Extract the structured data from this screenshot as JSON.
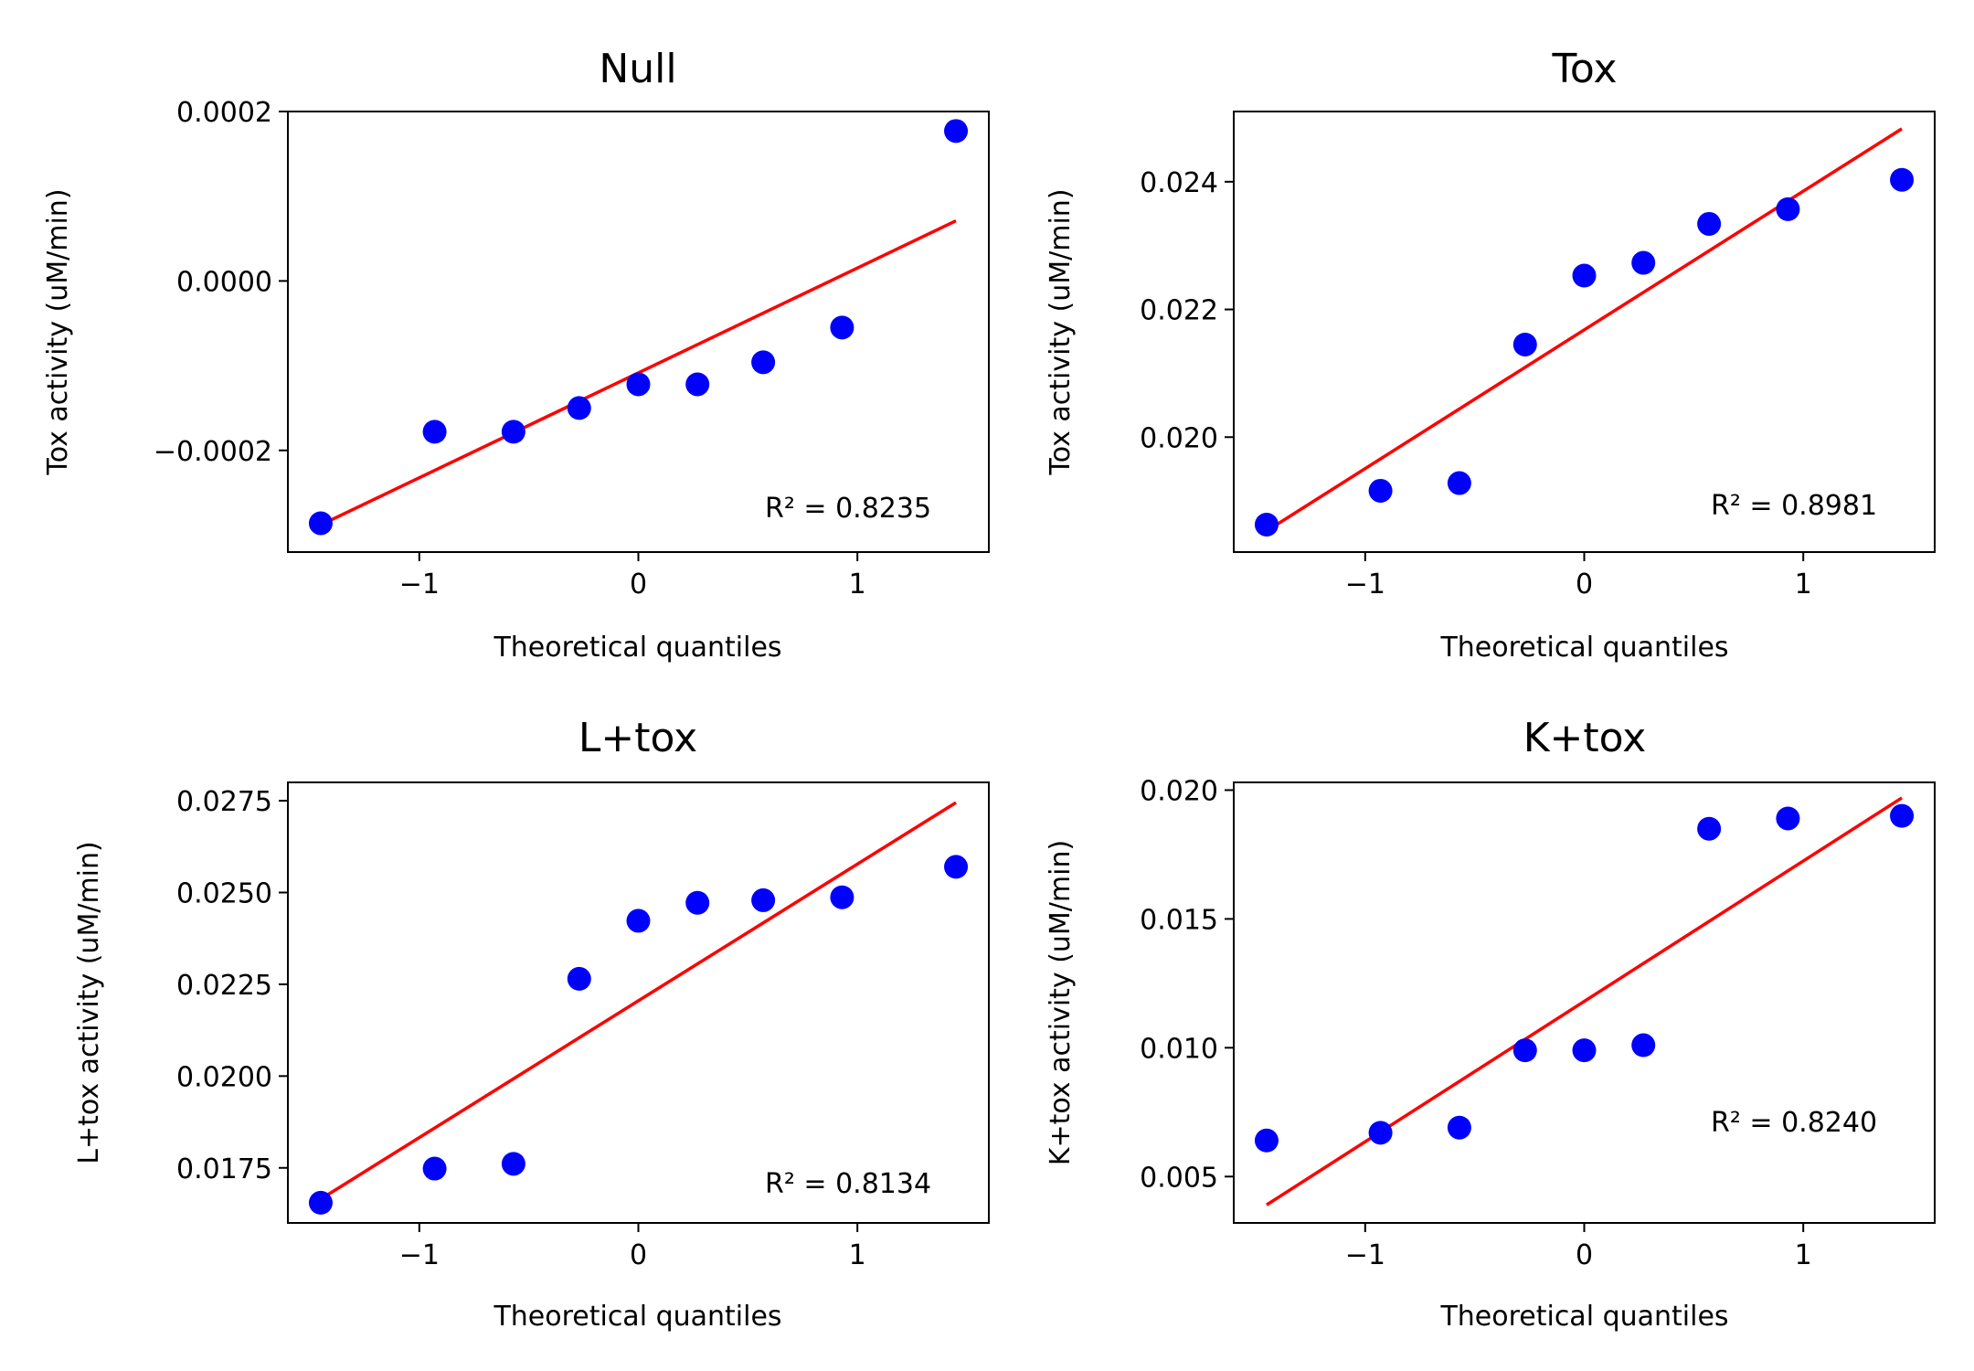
{
  "chart_data": [
    {
      "type": "scatter",
      "title": "Null",
      "xlabel": "Theoretical quantiles",
      "ylabel": "Tox activity (uM/min)",
      "xlim": [
        -1.6,
        1.6
      ],
      "ylim": [
        -0.00032,
        0.0002
      ],
      "xticks": [
        -1,
        0,
        1
      ],
      "xtick_labels": [
        "−1",
        "0",
        "1"
      ],
      "yticks": [
        -0.0002,
        0.0,
        0.0002
      ],
      "ytick_labels": [
        "−0.0002",
        "0.0000",
        "0.0002"
      ],
      "points": {
        "x": [
          -1.45,
          -0.93,
          -0.57,
          -0.27,
          0.0,
          0.27,
          0.57,
          0.93,
          1.45
        ],
        "y": [
          -0.000286,
          -0.000178,
          -0.000178,
          -0.00015,
          -0.000122,
          -0.000122,
          -9.6e-05,
          -5.5e-05,
          0.000177
        ]
      },
      "fit_line": {
        "x": [
          -1.45,
          1.45
        ],
        "y": [
          -0.000288,
          7.1e-05
        ]
      },
      "r2_label": "R² = 0.8235",
      "marker_color": "#0000ff",
      "line_color": "#ff0000"
    },
    {
      "type": "scatter",
      "title": "Tox",
      "xlabel": "Theoretical quantiles",
      "ylabel": "Tox activity (uM/min)",
      "xlim": [
        -1.6,
        1.6
      ],
      "ylim": [
        0.0182,
        0.0251
      ],
      "xticks": [
        -1,
        0,
        1
      ],
      "xtick_labels": [
        "−1",
        "0",
        "1"
      ],
      "yticks": [
        0.02,
        0.022,
        0.024
      ],
      "ytick_labels": [
        "0.020",
        "0.022",
        "0.024"
      ],
      "points": {
        "x": [
          -1.45,
          -0.93,
          -0.57,
          -0.27,
          0.0,
          0.27,
          0.57,
          0.93,
          1.45
        ],
        "y": [
          0.01863,
          0.01916,
          0.01928,
          0.02145,
          0.02253,
          0.02273,
          0.02334,
          0.02357,
          0.02403
        ]
      },
      "fit_line": {
        "x": [
          -1.45,
          1.45
        ],
        "y": [
          0.01853,
          0.02483
        ]
      },
      "r2_label": "R² = 0.8981",
      "marker_color": "#0000ff",
      "line_color": "#ff0000"
    },
    {
      "type": "scatter",
      "title": "L+tox",
      "xlabel": "Theoretical quantiles",
      "ylabel": "L+tox activity (uM/min)",
      "xlim": [
        -1.6,
        1.6
      ],
      "ylim": [
        0.016,
        0.028
      ],
      "xticks": [
        -1,
        0,
        1
      ],
      "xtick_labels": [
        "−1",
        "0",
        "1"
      ],
      "yticks": [
        0.0175,
        0.02,
        0.0225,
        0.025,
        0.0275
      ],
      "ytick_labels": [
        "0.0175",
        "0.0200",
        "0.0225",
        "0.0250",
        "0.0275"
      ],
      "points": {
        "x": [
          -1.45,
          -0.93,
          -0.57,
          -0.27,
          0.0,
          0.27,
          0.57,
          0.93,
          1.45
        ],
        "y": [
          0.01655,
          0.01748,
          0.01761,
          0.02265,
          0.02423,
          0.02472,
          0.02479,
          0.02487,
          0.0257
        ]
      },
      "fit_line": {
        "x": [
          -1.45,
          1.45
        ],
        "y": [
          0.01665,
          0.02745
        ]
      },
      "r2_label": "R² = 0.8134",
      "marker_color": "#0000ff",
      "line_color": "#ff0000"
    },
    {
      "type": "scatter",
      "title": "K+tox",
      "xlabel": "Theoretical quantiles",
      "ylabel": "K+tox activity (uM/min)",
      "xlim": [
        -1.6,
        1.6
      ],
      "ylim": [
        0.0032,
        0.0203
      ],
      "xticks": [
        -1,
        0,
        1
      ],
      "xtick_labels": [
        "−1",
        "0",
        "1"
      ],
      "yticks": [
        0.005,
        0.01,
        0.015,
        0.02
      ],
      "ytick_labels": [
        "0.005",
        "0.010",
        "0.015",
        "0.020"
      ],
      "points": {
        "x": [
          -1.45,
          -0.93,
          -0.57,
          -0.27,
          0.0,
          0.27,
          0.57,
          0.93,
          1.45
        ],
        "y": [
          0.0064,
          0.0067,
          0.0069,
          0.0099,
          0.0099,
          0.0101,
          0.0185,
          0.0189,
          0.019
        ]
      },
      "fit_line": {
        "x": [
          -1.45,
          1.45
        ],
        "y": [
          0.0039,
          0.0197
        ]
      },
      "r2_label": "R² = 0.8240",
      "marker_color": "#0000ff",
      "line_color": "#ff0000"
    }
  ]
}
